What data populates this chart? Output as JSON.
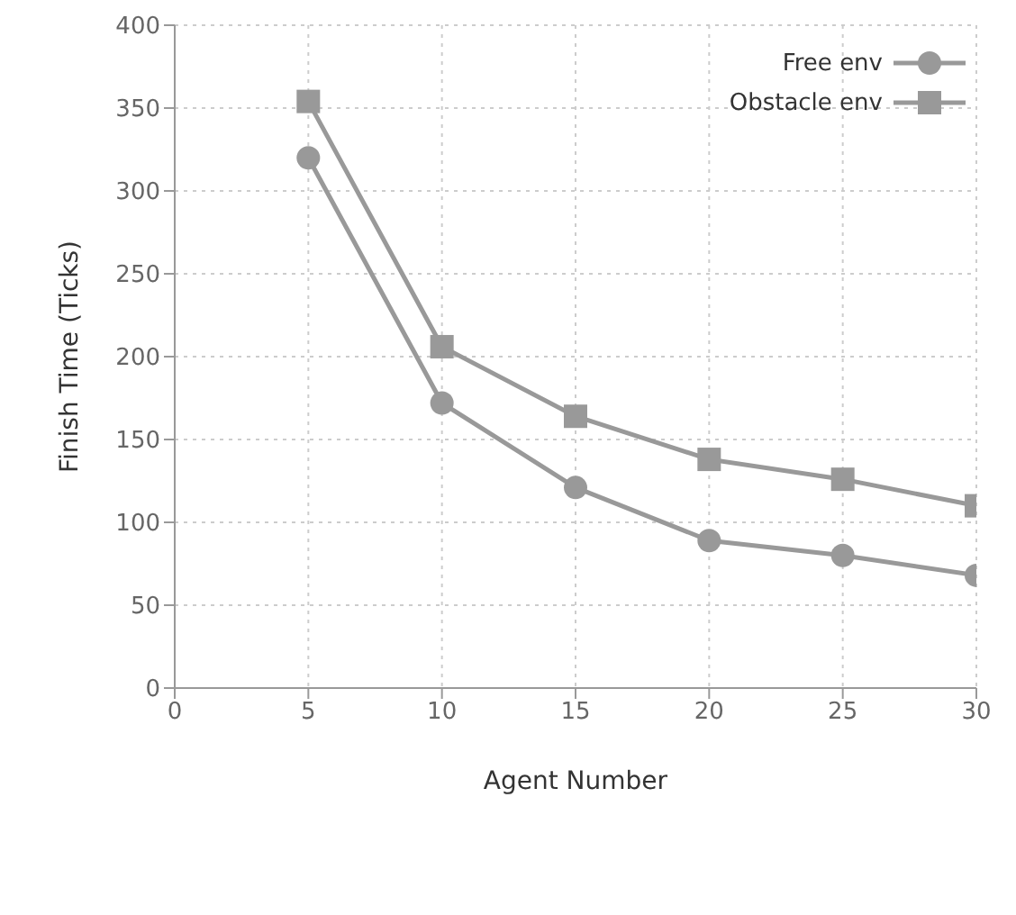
{
  "chart_data": {
    "type": "line",
    "xlabel": "Agent Number",
    "ylabel": "Finish Time (Ticks)",
    "x": [
      5,
      10,
      15,
      20,
      25,
      30
    ],
    "series": [
      {
        "name": "Free env",
        "color": "#999999",
        "marker": "circle",
        "values": [
          320,
          172,
          121,
          89,
          80,
          68
        ]
      },
      {
        "name": "Obstacle env",
        "color": "#999999",
        "marker": "square",
        "values": [
          354,
          206,
          164,
          138,
          126,
          110
        ]
      }
    ],
    "xlim": [
      0,
      30
    ],
    "xticks": [
      0,
      5,
      10,
      15,
      20,
      25,
      30
    ],
    "ylim": [
      0,
      400
    ],
    "yticks": [
      0,
      50,
      100,
      150,
      200,
      250,
      300,
      350,
      400
    ],
    "grid": true,
    "legend": "top right",
    "line_style": "solid"
  }
}
